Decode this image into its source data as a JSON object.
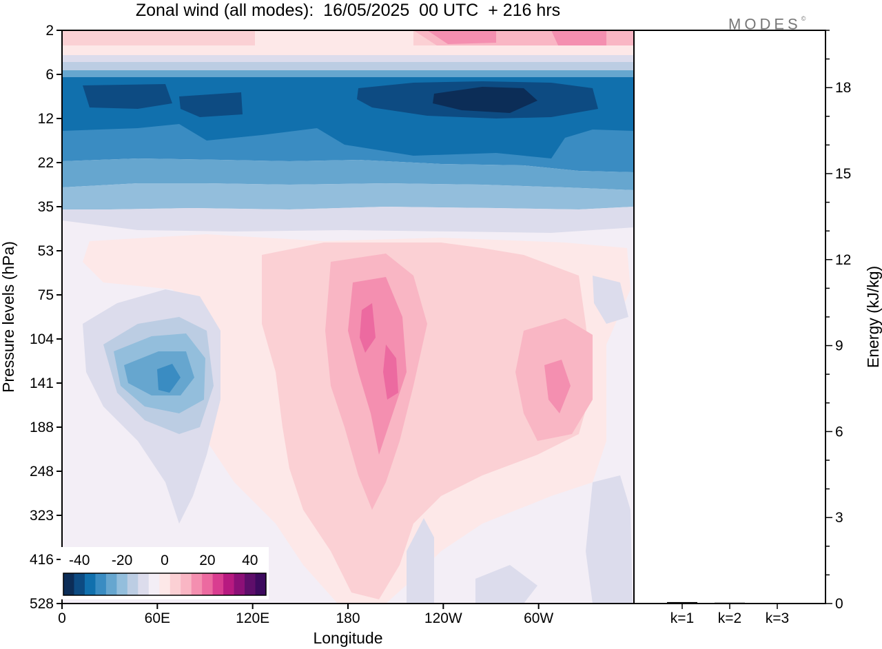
{
  "title": "Zonal wind (all modes):  16/05/2025  00 UTC  + 216 hrs",
  "logo": "MODES",
  "chart_data": [
    {
      "type": "heatmap",
      "variable": "Zonal wind (all modes)",
      "x_axis": {
        "label": "Longitude",
        "ticks": [
          "0",
          "60E",
          "120E",
          "180",
          "120W",
          "60W"
        ],
        "tick_values_deg_east": [
          0,
          60,
          120,
          180,
          240,
          300
        ],
        "range_deg_east": [
          0,
          360
        ]
      },
      "y_axis": {
        "label": "Pressure levels (hPa)",
        "ticks": [
          "2",
          "6",
          "12",
          "22",
          "35",
          "53",
          "75",
          "104",
          "141",
          "188",
          "248",
          "323",
          "416",
          "528"
        ],
        "tick_values_hPa": [
          2,
          6,
          12,
          22,
          35,
          53,
          75,
          104,
          141,
          188,
          248,
          323,
          416,
          528
        ],
        "scale": "non-uniform model levels",
        "inverted": true
      },
      "colorbar": {
        "tick_labels": [
          "-40",
          "-20",
          "0",
          "20",
          "40"
        ],
        "tick_values": [
          -40,
          -20,
          0,
          20,
          40
        ],
        "colors": [
          "#0c2d57",
          "#0d4b82",
          "#1170ad",
          "#3a8cc2",
          "#66a6cf",
          "#93bedc",
          "#bccde3",
          "#dcdcec",
          "#f3eef6",
          "#fde8e8",
          "#fbd0d4",
          "#f9b6c4",
          "#f48fb0",
          "#ec6aa0",
          "#d93d90",
          "#b71a80",
          "#8c1077",
          "#5e0e6a",
          "#3d0a5e"
        ],
        "placement": "bottom-left inset"
      },
      "features": [
        {
          "region": "upper stratosphere ~2-4 hPa",
          "sign": "westerly",
          "approx_value": 15
        },
        {
          "region": "~8-10 hPa, broad band",
          "sign": "easterly",
          "approx_value": -35,
          "peak_longitude": "~150W",
          "peak_value": -45
        },
        {
          "region": "~12-22 hPa band",
          "sign": "easterly",
          "approx_value": -25
        },
        {
          "region": "~70E, 104-141 hPa",
          "sign": "easterly",
          "approx_value": -20
        },
        {
          "region": "~180-195E, 104-141 hPa",
          "sign": "westerly",
          "approx_value": 25
        },
        {
          "region": "~80W, 141 hPa",
          "sign": "westerly",
          "approx_value": 15
        }
      ]
    },
    {
      "type": "bar",
      "categories": [
        "k=1",
        "k=2",
        "k=3"
      ],
      "values": [
        0.05,
        0.03,
        0.02
      ],
      "ylabel": "Energy (kJ/kg)",
      "ylim": [
        0,
        20
      ],
      "yticks": [
        0,
        3,
        6,
        9,
        12,
        15,
        18
      ],
      "y_axis_side": "right"
    }
  ]
}
